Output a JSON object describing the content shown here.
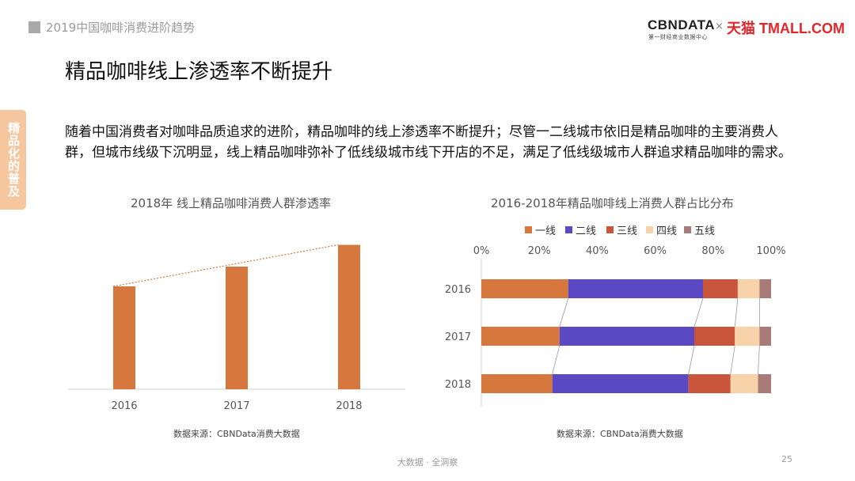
{
  "header": {
    "section_title": "2019中国咖啡消费进阶趋势"
  },
  "logos": {
    "cbn": "CBNDATA",
    "cbn_sub": "第一财经商业数据中心",
    "times": "×",
    "tmall": "天猫 TMALL.COM"
  },
  "page_title": "精品咖啡线上渗透率不断提升",
  "side_tab": "精品化的普及",
  "description": "随着中国消费者对咖啡品质追求的进阶，精品咖啡的线上渗透率不断提升；尽管一二线城市依旧是精品咖啡的主要消费人群，但城市线级下沉明显，线上精品咖啡弥补了低线级城市线下开店的不足，满足了低线级城市人群追求精品咖啡的需求。",
  "colors": {
    "orange": "#d6783d",
    "purple": "#5b49c4",
    "red": "#c9553a",
    "peach": "#f8d3a9",
    "mauve": "#a97b78"
  },
  "chart_data": [
    {
      "type": "bar",
      "title": "2018年 线上精品咖啡消费人群渗透率",
      "categories": [
        "2016",
        "2017",
        "2018"
      ],
      "values": [
        0.52,
        0.62,
        0.73
      ],
      "trendline": "dotted",
      "ylim": [
        0,
        0.8
      ],
      "grid": false,
      "source": "数据来源：CBNData消费大数据"
    },
    {
      "type": "bar",
      "orientation": "horizontal-stacked-100",
      "title": "2016-2018年精品咖啡线上消费人群占比分布",
      "categories": [
        "2016",
        "2017",
        "2018"
      ],
      "x_ticks": [
        "0%",
        "20%",
        "40%",
        "60%",
        "80%",
        "100%"
      ],
      "xlim": [
        0,
        100
      ],
      "legend_position": "top",
      "series": [
        {
          "name": "一线",
          "values": [
            30,
            27,
            24.5
          ]
        },
        {
          "name": "二线",
          "values": [
            46.5,
            46.5,
            47
          ]
        },
        {
          "name": "三线",
          "values": [
            12,
            14,
            14.5
          ]
        },
        {
          "name": "四线",
          "values": [
            7.5,
            8.5,
            9.5
          ]
        },
        {
          "name": "五线",
          "values": [
            4,
            4,
            4.5
          ]
        }
      ],
      "source": "数据来源：CBNData消费大数据"
    }
  ],
  "footer": {
    "text": "大数据 · 全洞察",
    "page": "25"
  }
}
